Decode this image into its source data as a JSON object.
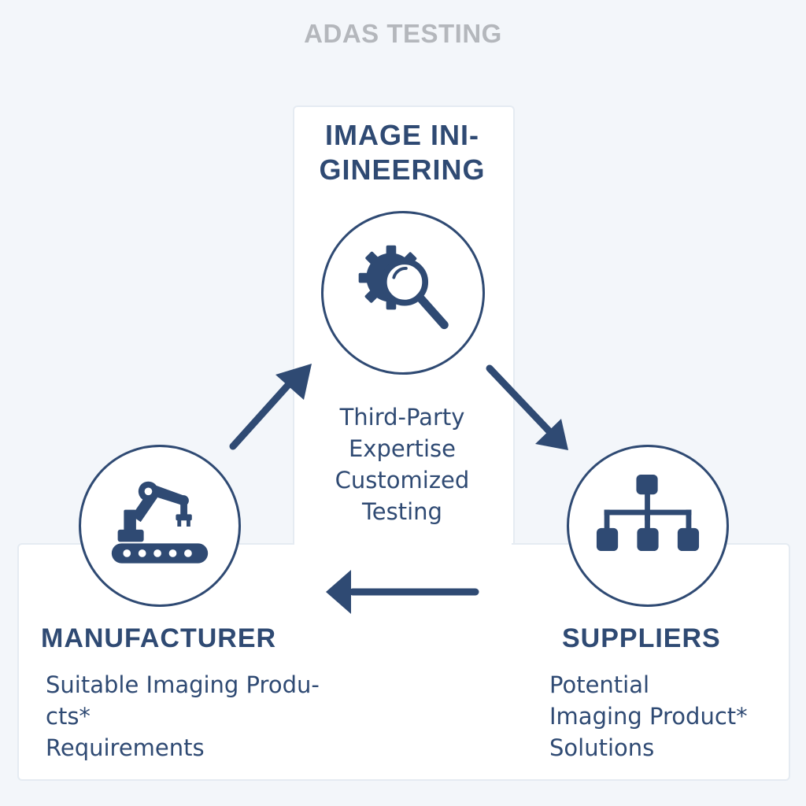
{
  "title": "ADAS TESTING",
  "image_engineering": {
    "heading_line1": "IMAGE INI-",
    "heading_line2": "GINEERING",
    "icon": "gear-magnifier-icon",
    "lines": [
      "Third-Party",
      "Expertise",
      "Customized",
      "Testing"
    ]
  },
  "manufacturer": {
    "heading": "MANUFACTURER",
    "icon": "robot-arm-conveyor-icon",
    "lines": [
      "Suitable Imaging Produ-",
      "cts*",
      "Requirements"
    ]
  },
  "suppliers": {
    "heading": "SUPPLIERS",
    "icon": "hierarchy-icon",
    "lines": [
      "Potential",
      "Imaging Product*",
      "Solutions"
    ]
  },
  "colors": {
    "primary": "#2f4a73",
    "title": "#b4b7bc",
    "background": "#f3f6fa",
    "panel": "#ffffff"
  }
}
